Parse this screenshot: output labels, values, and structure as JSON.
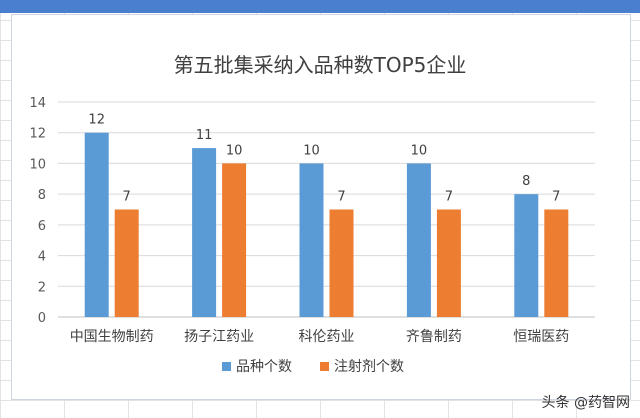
{
  "chart_data": {
    "type": "bar",
    "title": "第五批集采纳入品种数TOP5企业",
    "categories": [
      "中国生物制药",
      "扬子江药业",
      "科伦药业",
      "齐鲁制药",
      "恒瑞医药"
    ],
    "series": [
      {
        "name": "品种个数",
        "values": [
          12,
          11,
          10,
          10,
          8
        ],
        "color": "#5b9bd5"
      },
      {
        "name": "注射剂个数",
        "values": [
          7,
          10,
          7,
          7,
          7
        ],
        "color": "#ed7d31"
      }
    ],
    "ylim": [
      0,
      14
    ],
    "yticks": [
      0,
      2,
      4,
      6,
      8,
      10,
      12,
      14
    ],
    "grid": true,
    "legend": "bottom",
    "data_labels": true
  },
  "watermark": "头条 @药智网",
  "colors": {
    "top_strip": "#4a7fd0"
  }
}
